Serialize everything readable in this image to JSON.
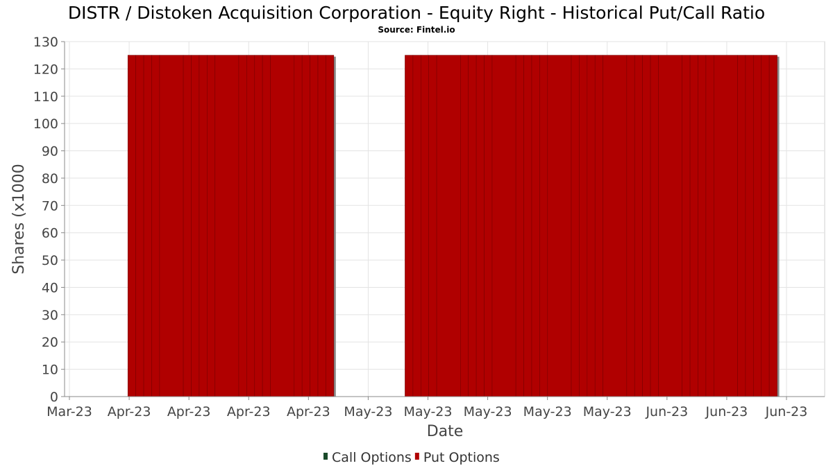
{
  "chart_data": {
    "type": "bar",
    "title": "DISTR / Distoken Acquisition Corporation - Equity Right - Historical Put/Call Ratio",
    "subtitle": "Source: Fintel.io",
    "xlabel": "Date",
    "ylabel": "Shares (x1000",
    "ylim": [
      0,
      130
    ],
    "y_ticks": [
      "0",
      "10",
      "20",
      "30",
      "40",
      "50",
      "60",
      "70",
      "80",
      "90",
      "100",
      "110",
      "120",
      "130"
    ],
    "x_tick_labels": [
      "Mar-23",
      "Apr-23",
      "Apr-23",
      "Apr-23",
      "Apr-23",
      "May-23",
      "May-23",
      "May-23",
      "May-23",
      "May-23",
      "Jun-23",
      "Jun-23",
      "Jun-23"
    ],
    "grid": true,
    "legend_placement": "bottom-center",
    "x_start": "2023-03-26",
    "x_end": "2023-06-30",
    "series": [
      {
        "name": "Call Options",
        "color": "#1a4a2a",
        "values": []
      },
      {
        "name": "Put Options",
        "color": "#b00000",
        "values": [
          {
            "x": "2023-04-03",
            "y": 125
          },
          {
            "x": "2023-04-04",
            "y": 125
          },
          {
            "x": "2023-04-05",
            "y": 125
          },
          {
            "x": "2023-04-06",
            "y": 125
          },
          {
            "x": "2023-04-07",
            "y": 125
          },
          {
            "x": "2023-04-10",
            "y": 125
          },
          {
            "x": "2023-04-11",
            "y": 125
          },
          {
            "x": "2023-04-12",
            "y": 125
          },
          {
            "x": "2023-04-13",
            "y": 125
          },
          {
            "x": "2023-04-14",
            "y": 125
          },
          {
            "x": "2023-04-17",
            "y": 125
          },
          {
            "x": "2023-04-18",
            "y": 125
          },
          {
            "x": "2023-04-19",
            "y": 125
          },
          {
            "x": "2023-04-20",
            "y": 125
          },
          {
            "x": "2023-04-21",
            "y": 125
          },
          {
            "x": "2023-04-24",
            "y": 125
          },
          {
            "x": "2023-04-25",
            "y": 125
          },
          {
            "x": "2023-04-26",
            "y": 125
          },
          {
            "x": "2023-04-27",
            "y": 125
          },
          {
            "x": "2023-04-28",
            "y": 125
          },
          {
            "x": "2023-05-08",
            "y": 125
          },
          {
            "x": "2023-05-09",
            "y": 125
          },
          {
            "x": "2023-05-10",
            "y": 125
          },
          {
            "x": "2023-05-11",
            "y": 125
          },
          {
            "x": "2023-05-12",
            "y": 125
          },
          {
            "x": "2023-05-15",
            "y": 125
          },
          {
            "x": "2023-05-16",
            "y": 125
          },
          {
            "x": "2023-05-17",
            "y": 125
          },
          {
            "x": "2023-05-18",
            "y": 125
          },
          {
            "x": "2023-05-19",
            "y": 125
          },
          {
            "x": "2023-05-22",
            "y": 125
          },
          {
            "x": "2023-05-23",
            "y": 125
          },
          {
            "x": "2023-05-24",
            "y": 125
          },
          {
            "x": "2023-05-25",
            "y": 125
          },
          {
            "x": "2023-05-26",
            "y": 125
          },
          {
            "x": "2023-05-29",
            "y": 125
          },
          {
            "x": "2023-05-30",
            "y": 125
          },
          {
            "x": "2023-05-31",
            "y": 125
          },
          {
            "x": "2023-06-01",
            "y": 125
          },
          {
            "x": "2023-06-02",
            "y": 125
          },
          {
            "x": "2023-06-05",
            "y": 125
          },
          {
            "x": "2023-06-06",
            "y": 125
          },
          {
            "x": "2023-06-07",
            "y": 125
          },
          {
            "x": "2023-06-08",
            "y": 125
          },
          {
            "x": "2023-06-09",
            "y": 125
          },
          {
            "x": "2023-06-12",
            "y": 125
          },
          {
            "x": "2023-06-13",
            "y": 125
          },
          {
            "x": "2023-06-14",
            "y": 125
          },
          {
            "x": "2023-06-15",
            "y": 125
          },
          {
            "x": "2023-06-16",
            "y": 125
          },
          {
            "x": "2023-06-19",
            "y": 125
          },
          {
            "x": "2023-06-20",
            "y": 125
          },
          {
            "x": "2023-06-21",
            "y": 125
          },
          {
            "x": "2023-06-22",
            "y": 125
          },
          {
            "x": "2023-06-23",
            "y": 125
          }
        ]
      }
    ]
  }
}
